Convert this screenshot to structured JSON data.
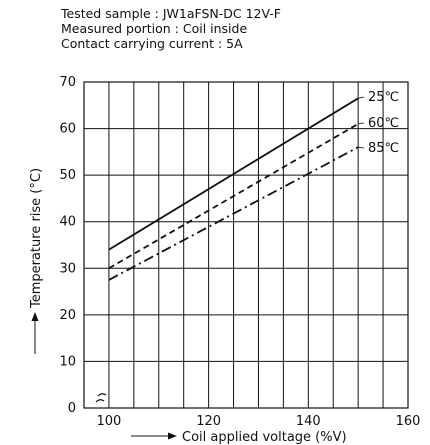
{
  "header": {
    "line1": "Tested sample : JW1aFSN-DC 12V-F",
    "line2": "Measured portion : Coil inside",
    "line3": "Contact carrying current : 5A"
  },
  "chart_data": {
    "type": "line",
    "xlabel": "Coil applied voltage (%V)",
    "ylabel": "Temperature rise (°C)",
    "xlim": [
      95,
      160
    ],
    "ylim": [
      0,
      70
    ],
    "x_ticks": [
      "100",
      "120",
      "140",
      "160"
    ],
    "y_ticks": [
      "0",
      "10",
      "20",
      "30",
      "40",
      "50",
      "60",
      "70"
    ],
    "grid": true,
    "series": [
      {
        "name": "25℃",
        "style": "solid",
        "x": [
          100,
          150
        ],
        "y": [
          34,
          66.5
        ]
      },
      {
        "name": "60℃",
        "style": "dashed",
        "x": [
          100,
          150
        ],
        "y": [
          30,
          61
        ]
      },
      {
        "name": "85℃",
        "style": "dash-dot",
        "x": [
          100,
          150
        ],
        "y": [
          27.5,
          56
        ]
      }
    ],
    "colors": {
      "line": "#111111",
      "grid": "#111111"
    }
  }
}
